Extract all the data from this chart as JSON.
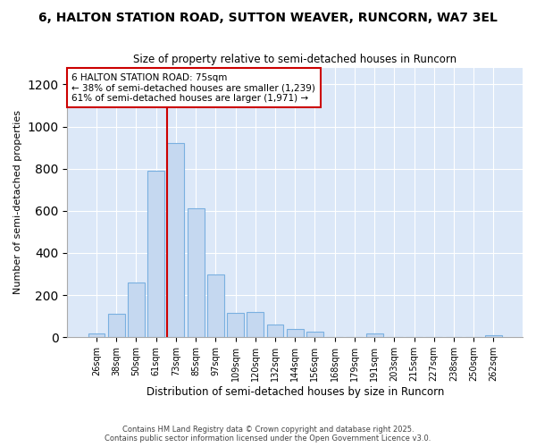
{
  "title_line1": "6, HALTON STATION ROAD, SUTTON WEAVER, RUNCORN, WA7 3EL",
  "title_line2": "Size of property relative to semi-detached houses in Runcorn",
  "xlabel": "Distribution of semi-detached houses by size in Runcorn",
  "ylabel": "Number of semi-detached properties",
  "categories": [
    "26sqm",
    "38sqm",
    "50sqm",
    "61sqm",
    "73sqm",
    "85sqm",
    "97sqm",
    "109sqm",
    "120sqm",
    "132sqm",
    "144sqm",
    "156sqm",
    "168sqm",
    "179sqm",
    "191sqm",
    "203sqm",
    "215sqm",
    "227sqm",
    "238sqm",
    "250sqm",
    "262sqm"
  ],
  "values": [
    20,
    110,
    260,
    790,
    920,
    610,
    300,
    115,
    120,
    60,
    40,
    28,
    0,
    0,
    20,
    0,
    0,
    0,
    0,
    0,
    8
  ],
  "bar_color": "#c5d8f0",
  "bar_edge_color": "#7ab0e0",
  "highlight_line_index": 4,
  "annotation_title": "6 HALTON STATION ROAD: 75sqm",
  "annotation_line1": "← 38% of semi-detached houses are smaller (1,239)",
  "annotation_line2": "61% of semi-detached houses are larger (1,971) →",
  "red_line_color": "#cc0000",
  "annotation_box_color": "#ffffff",
  "annotation_box_edge": "#cc0000",
  "ylim": [
    0,
    1280
  ],
  "yticks": [
    0,
    200,
    400,
    600,
    800,
    1000,
    1200
  ],
  "fig_background_color": "#ffffff",
  "plot_background": "#dce8f8",
  "grid_color": "#ffffff",
  "footer_line1": "Contains HM Land Registry data © Crown copyright and database right 2025.",
  "footer_line2": "Contains public sector information licensed under the Open Government Licence v3.0."
}
